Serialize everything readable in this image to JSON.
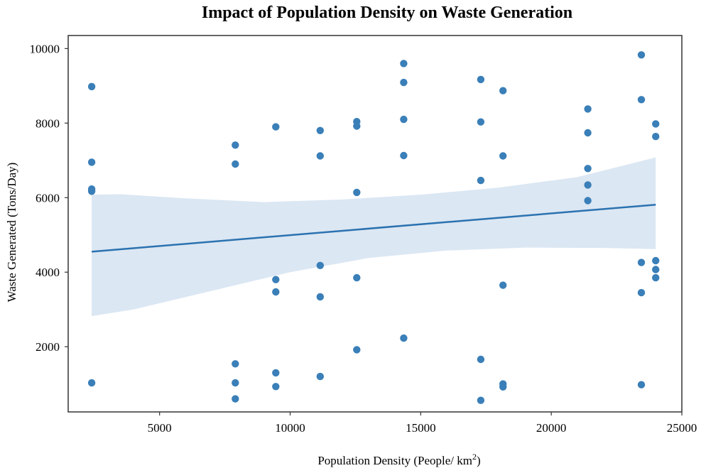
{
  "chart_data": {
    "type": "scatter",
    "title": "Impact of Population Density on Waste Generation",
    "xlabel": "Population Density  (People/ km",
    "xlabel_sup": "2",
    "xlabel_close": ")",
    "ylabel": "Waste  Generated  (Tons/Day)",
    "xlim": [
      1500,
      25000
    ],
    "ylim": [
      250,
      10350
    ],
    "x_ticks": [
      5000,
      10000,
      15000,
      20000,
      25000
    ],
    "y_ticks": [
      2000,
      4000,
      6000,
      8000,
      10000
    ],
    "grid": false,
    "legend": "none",
    "point_color": "#3a7fb8",
    "line_color": "#2b72b0",
    "band_color": "#dbe7f3",
    "points": [
      {
        "x": 2400,
        "y": 8980
      },
      {
        "x": 2400,
        "y": 6950
      },
      {
        "x": 2400,
        "y": 6230
      },
      {
        "x": 2400,
        "y": 6170
      },
      {
        "x": 2400,
        "y": 1030
      },
      {
        "x": 7900,
        "y": 7410
      },
      {
        "x": 7900,
        "y": 6900
      },
      {
        "x": 7900,
        "y": 1540
      },
      {
        "x": 7900,
        "y": 1030
      },
      {
        "x": 7900,
        "y": 600
      },
      {
        "x": 9450,
        "y": 7900
      },
      {
        "x": 9450,
        "y": 3800
      },
      {
        "x": 9450,
        "y": 3470
      },
      {
        "x": 9450,
        "y": 1300
      },
      {
        "x": 9450,
        "y": 930
      },
      {
        "x": 11150,
        "y": 7800
      },
      {
        "x": 11150,
        "y": 7120
      },
      {
        "x": 11150,
        "y": 4180
      },
      {
        "x": 11150,
        "y": 3340
      },
      {
        "x": 11150,
        "y": 1200
      },
      {
        "x": 12550,
        "y": 8040
      },
      {
        "x": 12550,
        "y": 7920
      },
      {
        "x": 12550,
        "y": 6140
      },
      {
        "x": 12550,
        "y": 3850
      },
      {
        "x": 12550,
        "y": 1920
      },
      {
        "x": 14350,
        "y": 9600
      },
      {
        "x": 14350,
        "y": 9090
      },
      {
        "x": 14350,
        "y": 8100
      },
      {
        "x": 14350,
        "y": 7130
      },
      {
        "x": 14350,
        "y": 2230
      },
      {
        "x": 17300,
        "y": 9170
      },
      {
        "x": 17300,
        "y": 8030
      },
      {
        "x": 17300,
        "y": 6460
      },
      {
        "x": 17300,
        "y": 1660
      },
      {
        "x": 17300,
        "y": 560
      },
      {
        "x": 18150,
        "y": 8870
      },
      {
        "x": 18150,
        "y": 7120
      },
      {
        "x": 18150,
        "y": 3650
      },
      {
        "x": 18150,
        "y": 1000
      },
      {
        "x": 18150,
        "y": 920
      },
      {
        "x": 21400,
        "y": 8380
      },
      {
        "x": 21400,
        "y": 7740
      },
      {
        "x": 21400,
        "y": 6780
      },
      {
        "x": 21400,
        "y": 6340
      },
      {
        "x": 21400,
        "y": 5920
      },
      {
        "x": 23450,
        "y": 9830
      },
      {
        "x": 23450,
        "y": 8630
      },
      {
        "x": 23450,
        "y": 4260
      },
      {
        "x": 23450,
        "y": 3450
      },
      {
        "x": 23450,
        "y": 980
      },
      {
        "x": 24000,
        "y": 7980
      },
      {
        "x": 24000,
        "y": 7640
      },
      {
        "x": 24000,
        "y": 4310
      },
      {
        "x": 24000,
        "y": 4070
      },
      {
        "x": 24000,
        "y": 3850
      }
    ],
    "regression_line": [
      {
        "x": 2400,
        "y": 4550
      },
      {
        "x": 24000,
        "y": 5810
      }
    ],
    "confidence_band": {
      "upper": [
        {
          "x": 2400,
          "y": 6080
        },
        {
          "x": 3500,
          "y": 6090
        },
        {
          "x": 6000,
          "y": 5980
        },
        {
          "x": 9000,
          "y": 5880
        },
        {
          "x": 12000,
          "y": 5950
        },
        {
          "x": 15000,
          "y": 6080
        },
        {
          "x": 18000,
          "y": 6270
        },
        {
          "x": 21000,
          "y": 6550
        },
        {
          "x": 24000,
          "y": 7080
        }
      ],
      "lower": [
        {
          "x": 2400,
          "y": 2820
        },
        {
          "x": 4000,
          "y": 3000
        },
        {
          "x": 7000,
          "y": 3500
        },
        {
          "x": 10000,
          "y": 4000
        },
        {
          "x": 13000,
          "y": 4380
        },
        {
          "x": 16000,
          "y": 4580
        },
        {
          "x": 19000,
          "y": 4660
        },
        {
          "x": 22000,
          "y": 4650
        },
        {
          "x": 24000,
          "y": 4620
        }
      ]
    }
  }
}
